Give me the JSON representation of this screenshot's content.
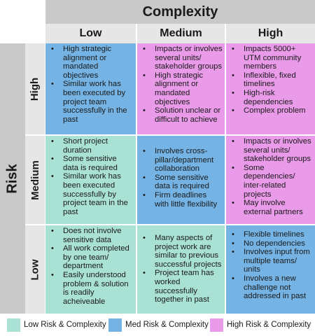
{
  "header": {
    "title": "Complexity",
    "columns": [
      "Low",
      "Medium",
      "High"
    ]
  },
  "risk_label": "Risk",
  "rows": [
    {
      "label": "High",
      "cells": [
        [
          "High strategic alignment or mandated objectives",
          "Similar work has been executed by project team successfully in the past"
        ],
        [
          "Impacts or involves several units/ stakeholder groups",
          "High strategic alignment or mandated objectives",
          "Solution unclear or difficult to achieve"
        ],
        [
          "Impacts 5000+ UTM community members",
          "Inflexible, fixed timelines",
          "High-risk dependencies",
          "Complex problem"
        ]
      ]
    },
    {
      "label": "Medium",
      "cells": [
        [
          "Short project duration",
          "Some sensitive data is required",
          "Similar work has been executed successfully by project team in the past"
        ],
        [
          "Involves cross-pillar/department collaboration",
          "Some sensitive data is required",
          "Firm deadlines with little flexibility"
        ],
        [
          "Impacts or involves several units/ stakeholder groups",
          "Some dependencies/ inter-related projects",
          "May involve external partners"
        ]
      ]
    },
    {
      "label": "Low",
      "cells": [
        [
          "Does not involve sensitive data",
          "All work completed by one team/ department",
          "Easily understood problem & solution is readily acheiveable"
        ],
        [
          "Many aspects of project work are similar to previous successful projects",
          "Project team has worked successfully together in past"
        ],
        [
          "Flexible timelines",
          "No dependencies",
          "Involves input from multiple teams/ units",
          "Involves a new challenge not addressed in past"
        ]
      ]
    }
  ],
  "legend": [
    {
      "label": "Low Risk & Complexity",
      "color": "#a9e1d4"
    },
    {
      "label": "Med Risk & Complexity",
      "color": "#74b3e4"
    },
    {
      "label": "High Risk & Complexity",
      "color": "#e99ae8"
    }
  ]
}
